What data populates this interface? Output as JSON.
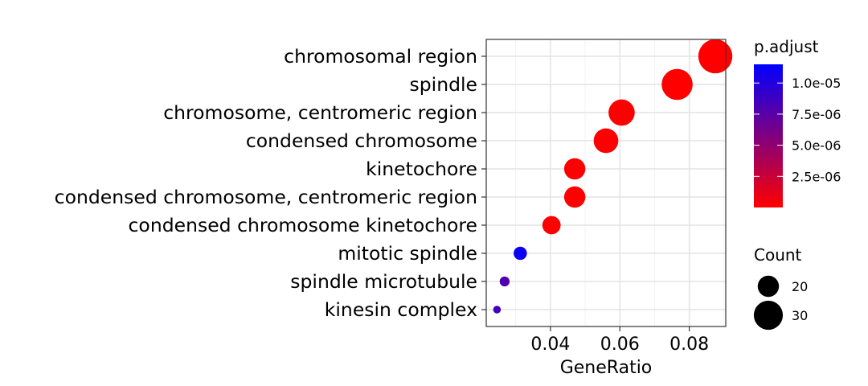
{
  "chart_data": {
    "type": "scatter",
    "xlabel": "GeneRatio",
    "ylabel": "",
    "xlim": [
      0.0215,
      0.0905
    ],
    "x_ticks": [
      0.04,
      0.06,
      0.08
    ],
    "x_tick_labels": [
      "0.04",
      "0.06",
      "0.08"
    ],
    "grid": true,
    "categories": [
      "chromosomal region",
      "spindle",
      "chromosome, centromeric region",
      "condensed chromosome",
      "kinetochore",
      "condensed chromosome, centromeric region",
      "condensed chromosome kinetochore",
      "mitotic spindle",
      "spindle microtubule",
      "kinesin complex"
    ],
    "points": [
      {
        "term": "chromosomal region",
        "gene_ratio": 0.0875,
        "count": 38,
        "p_adjust": 1e-09
      },
      {
        "term": "spindle",
        "gene_ratio": 0.0765,
        "count": 33,
        "p_adjust": 1e-08
      },
      {
        "term": "chromosome, centromeric region",
        "gene_ratio": 0.0605,
        "count": 26,
        "p_adjust": 1e-08
      },
      {
        "term": "condensed chromosome",
        "gene_ratio": 0.056,
        "count": 24,
        "p_adjust": 1e-08
      },
      {
        "term": "kinetochore",
        "gene_ratio": 0.047,
        "count": 20,
        "p_adjust": 1e-08
      },
      {
        "term": "condensed chromosome, centromeric region",
        "gene_ratio": 0.047,
        "count": 20,
        "p_adjust": 1e-08
      },
      {
        "term": "condensed chromosome kinetochore",
        "gene_ratio": 0.0403,
        "count": 17,
        "p_adjust": 1e-08
      },
      {
        "term": "mitotic spindle",
        "gene_ratio": 0.0313,
        "count": 13,
        "p_adjust": 1.1e-05
      },
      {
        "term": "spindle microtubule",
        "gene_ratio": 0.0268,
        "count": 11,
        "p_adjust": 8e-06
      },
      {
        "term": "kinesin complex",
        "gene_ratio": 0.0246,
        "count": 10,
        "p_adjust": 8.5e-06
      }
    ],
    "color_legend": {
      "title": "p.adjust",
      "range": [
        1e-09,
        1.15e-05
      ],
      "low_color": "#ff0000",
      "high_color": "#0000ff",
      "ticks": [
        2.5e-06,
        5e-06,
        7.5e-06,
        1e-05
      ],
      "tick_labels": [
        "2.5e-06",
        "5.0e-06",
        "7.5e-06",
        "1.0e-05"
      ],
      "placement": "right"
    },
    "size_legend": {
      "title": "Count",
      "values": [
        20,
        30
      ],
      "labels": [
        "20",
        "30"
      ],
      "placement": "right"
    }
  }
}
